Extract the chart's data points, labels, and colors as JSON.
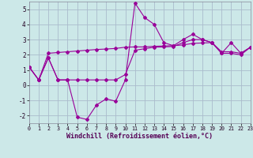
{
  "background_color": "#cce8e8",
  "grid_color": "#aabbcc",
  "line_color": "#990099",
  "xlabel": "Windchill (Refroidissement éolien,°C)",
  "xlim": [
    0,
    23
  ],
  "ylim": [
    -2.5,
    5.5
  ],
  "xticks": [
    0,
    1,
    2,
    3,
    4,
    5,
    6,
    7,
    8,
    9,
    10,
    11,
    12,
    13,
    14,
    15,
    16,
    17,
    18,
    19,
    20,
    21,
    22,
    23
  ],
  "yticks": [
    -2,
    -1,
    0,
    1,
    2,
    3,
    4,
    5
  ],
  "line1_x": [
    0,
    1,
    2,
    3,
    4,
    5,
    6,
    7,
    8,
    9,
    10,
    11,
    12,
    13,
    14,
    15,
    16,
    17,
    18,
    19,
    20,
    21,
    22,
    23
  ],
  "line1_y": [
    1.2,
    0.35,
    1.8,
    0.35,
    0.35,
    -2.1,
    -2.25,
    -1.3,
    -0.9,
    -1.05,
    0.35,
    5.4,
    4.45,
    4.0,
    2.8,
    2.6,
    3.0,
    3.35,
    3.0,
    2.8,
    2.1,
    2.8,
    2.1,
    2.5
  ],
  "line2_x": [
    0,
    1,
    2,
    3,
    4,
    5,
    6,
    7,
    8,
    9,
    10,
    11,
    12,
    13,
    14,
    15,
    16,
    17,
    18,
    19,
    20,
    21,
    22,
    23
  ],
  "line2_y": [
    1.2,
    0.35,
    2.1,
    2.15,
    2.2,
    2.25,
    2.3,
    2.35,
    2.38,
    2.42,
    2.5,
    2.52,
    2.52,
    2.56,
    2.58,
    2.6,
    2.65,
    2.75,
    2.78,
    2.8,
    2.2,
    2.2,
    2.1,
    2.5
  ],
  "line3_x": [
    0,
    1,
    2,
    3,
    4,
    5,
    6,
    7,
    8,
    9,
    10,
    11,
    12,
    13,
    14,
    15,
    16,
    17,
    18,
    19,
    20,
    21,
    22,
    23
  ],
  "line3_y": [
    1.2,
    0.35,
    1.8,
    0.35,
    0.35,
    0.35,
    0.35,
    0.35,
    0.35,
    0.35,
    0.7,
    2.3,
    2.4,
    2.5,
    2.52,
    2.55,
    2.8,
    3.0,
    3.0,
    2.8,
    2.1,
    2.1,
    2.0,
    2.5
  ]
}
